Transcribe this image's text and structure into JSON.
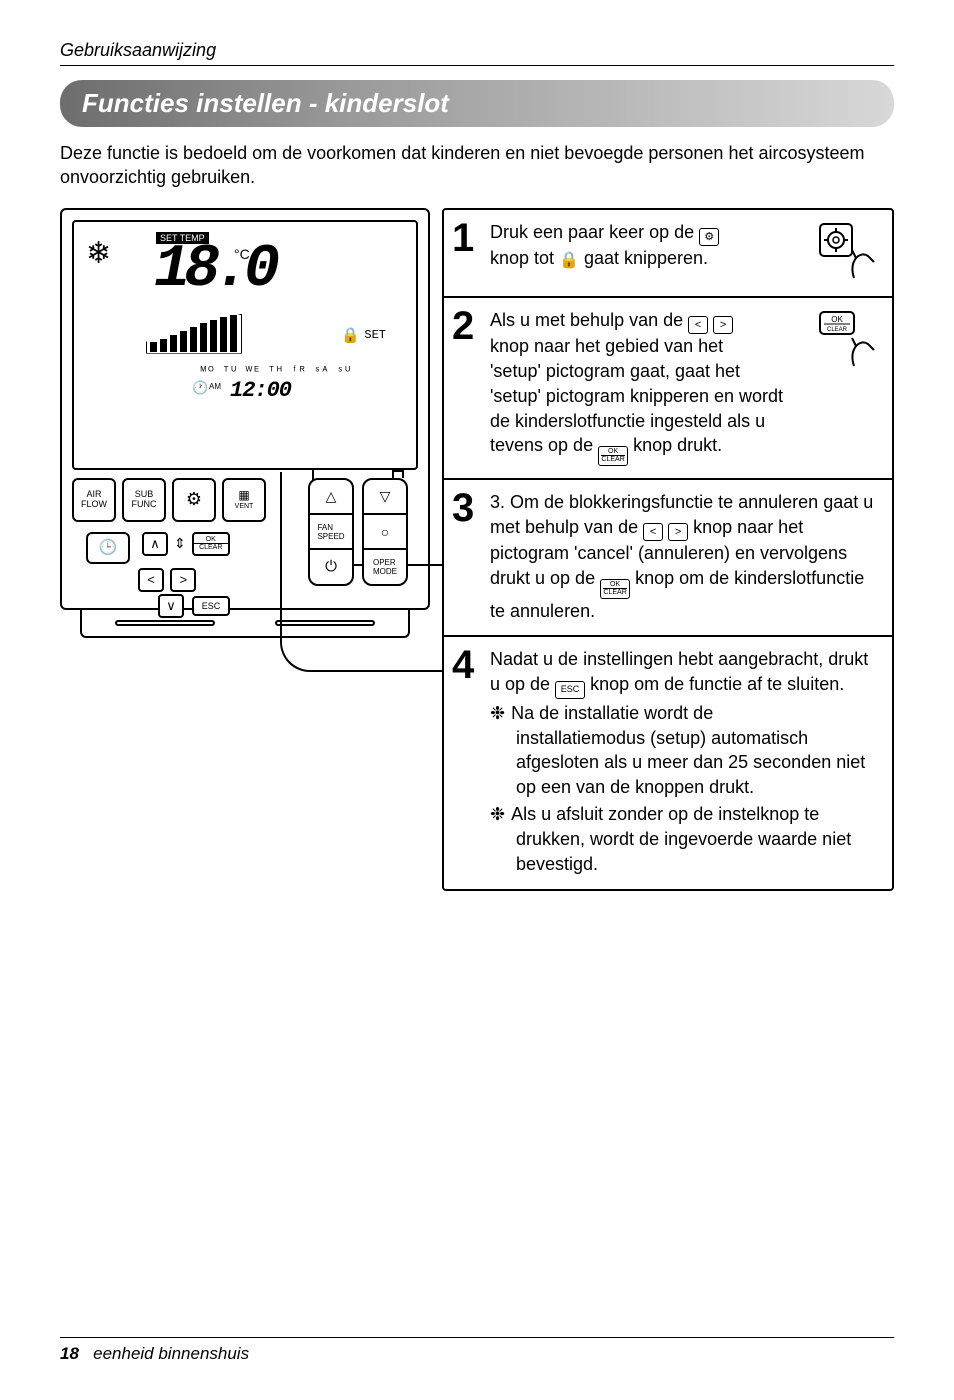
{
  "header": {
    "manual_title": "Gebruiksaanwijzing"
  },
  "title": "Functies instellen - kinderslot",
  "intro": "Deze functie is bedoeld om de voorkomen dat kinderen en niet bevoegde personen het aircosysteem onvoorzichtig gebruiken.",
  "device": {
    "lcd": {
      "snow_glyph": "❄",
      "settemp_label": "SET TEMP",
      "temp_value": "18.0",
      "deg_label": "°C",
      "lock_glyph": "🔒",
      "set_label": "SET",
      "days": "ᴹᴼ ᵀᵁ ᵂᴱ ᵀᴴ ᶠᴿ ˢᴬ ˢᵁ",
      "clock_glyph": "🕐",
      "am_label": "AM",
      "clock_value": "12:00"
    },
    "keypad": {
      "air_flow": "AIR\nFLOW",
      "sub_func": "SUB\nFUNC",
      "gear_glyph": "⚙",
      "vent_label": "VENT",
      "vent_glyph": "▦",
      "timer_glyph": "🕒",
      "up_glyph": "∧",
      "down_glyph": "∨",
      "updown_glyph": "⇕",
      "left_glyph": "<",
      "right_glyph": ">",
      "check_glyph": "∨",
      "ok_top": "OK",
      "ok_bottom": "CLEAR",
      "tri_up": "△",
      "fan_speed": "FAN\nSPEED",
      "power_glyph": "⏻",
      "tri_down": "▽",
      "circle_glyph": "○",
      "oper_mode": "OPER\nMODE",
      "esc": "ESC"
    }
  },
  "icons": {
    "gear_box": "⚙",
    "lock_plain": "🔒",
    "ok_clear": "OK",
    "left": "<",
    "right": ">",
    "esc": "ESC",
    "snow_bullet": "❉"
  },
  "steps": [
    {
      "n": "1",
      "parts": [
        {
          "t": "Druk een paar keer op de "
        },
        {
          "icon": "gear_box"
        },
        {
          "br": true
        },
        {
          "t": "knop tot "
        },
        {
          "plain": "lock_plain"
        },
        {
          "t": " gaat knipperen."
        }
      ],
      "thumb": "gear_press"
    },
    {
      "n": "2",
      "parts": [
        {
          "t": "Als u met behulp van de "
        },
        {
          "icon": "left"
        },
        {
          "t": " "
        },
        {
          "icon": "right"
        },
        {
          "br": true
        },
        {
          "t": "knop naar het gebied van het"
        },
        {
          "br": true
        },
        {
          "t": "'setup' pictogram gaat, gaat het"
        },
        {
          "br": true
        },
        {
          "t": "'setup' pictogram knipperen en wordt de kinderslotfunctie ingesteld als u tevens op de "
        },
        {
          "icon": "ok_clear"
        },
        {
          "t": " knop drukt."
        }
      ],
      "thumb": "ok_press"
    },
    {
      "n": "3",
      "parts": [
        {
          "t": "3. Om de blokkeringsfunctie te annuleren gaat u met behulp van de "
        },
        {
          "icon": "left"
        },
        {
          "t": " "
        },
        {
          "icon": "right"
        },
        {
          "t": " knop naar het pictogram 'cancel' (annuleren) en vervolgens drukt u op de "
        },
        {
          "icon": "ok_clear"
        },
        {
          "t": " knop om de kinderslotfunctie te annuleren."
        }
      ]
    },
    {
      "n": "4",
      "parts": [
        {
          "t": "Nadat u de instellingen hebt aangebracht, drukt u op de "
        },
        {
          "icon": "esc"
        },
        {
          "t": " knop om de functie af te sluiten."
        }
      ],
      "bullets": [
        {
          "first": "Na de installatie wordt de",
          "rest": "installatiemodus (setup) automatisch afgesloten als u meer dan 25 seconden niet op een van de knoppen drukt."
        },
        {
          "first": "Als u afsluit zonder op de instelknop te",
          "rest": "drukken, wordt de ingevoerde waarde niet bevestigd."
        }
      ]
    }
  ],
  "footer": {
    "page": "18",
    "label": "eenheid binnenshuis"
  }
}
